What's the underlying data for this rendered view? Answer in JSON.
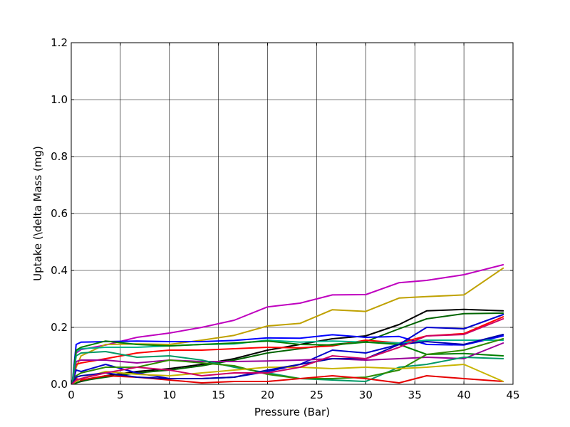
{
  "chart_data": {
    "type": "line",
    "title": "",
    "xlabel": "Pressure (Bar)",
    "ylabel": "Uptake (\\delta Mass (mg)",
    "xlim": [
      0,
      45
    ],
    "ylim": [
      0,
      1.2
    ],
    "xticks": [
      0,
      5,
      10,
      15,
      20,
      25,
      30,
      35,
      40,
      45
    ],
    "yticks": [
      0.0,
      0.2,
      0.4,
      0.6,
      0.8,
      1.0,
      1.2
    ],
    "xtick_labels": [
      "0",
      "5",
      "10",
      "15",
      "20",
      "25",
      "30",
      "35",
      "40",
      "45"
    ],
    "ytick_labels": [
      "0.0",
      "0.2",
      "0.4",
      "0.6",
      "0.8",
      "1.0",
      "1.2"
    ],
    "grid": true,
    "legend": "none",
    "series": [
      {
        "color": "#bf00bf",
        "x": [
          0.1,
          0.5,
          1,
          3.5,
          6.7,
          10,
          13.3,
          16.6,
          20,
          23.3,
          26.6,
          30,
          33.4,
          36.2,
          40,
          44
        ],
        "y": [
          0.005,
          0.11,
          0.122,
          0.138,
          0.165,
          0.18,
          0.2,
          0.225,
          0.272,
          0.285,
          0.314,
          0.315,
          0.357,
          0.365,
          0.385,
          0.42
        ]
      },
      {
        "color": "#bfa100",
        "x": [
          0.1,
          0.5,
          1,
          3.5,
          6.7,
          10,
          13.3,
          16.6,
          20,
          23.3,
          26.6,
          30,
          33.4,
          36.2,
          40,
          44
        ],
        "y": [
          0.005,
          0.06,
          0.1,
          0.14,
          0.142,
          0.14,
          0.155,
          0.172,
          0.205,
          0.214,
          0.262,
          0.256,
          0.303,
          0.308,
          0.314,
          0.408
        ]
      },
      {
        "color": "#000000",
        "x": [
          0.1,
          0.5,
          1,
          3.5,
          6.7,
          10,
          13.3,
          16.6,
          20,
          23.3,
          26.6,
          30,
          33.4,
          36.2,
          40,
          44
        ],
        "y": [
          0.002,
          0.005,
          0.01,
          0.03,
          0.045,
          0.055,
          0.07,
          0.09,
          0.12,
          0.14,
          0.16,
          0.17,
          0.21,
          0.258,
          0.263,
          0.258
        ]
      },
      {
        "color": "#006400",
        "x": [
          0.1,
          0.5,
          1,
          3.5,
          6.7,
          10,
          13.3,
          16.6,
          20,
          23.3,
          26.6,
          30,
          33.4,
          36.2,
          40,
          44
        ],
        "y": [
          0.002,
          0.004,
          0.012,
          0.025,
          0.04,
          0.05,
          0.065,
          0.085,
          0.11,
          0.125,
          0.14,
          0.15,
          0.195,
          0.23,
          0.248,
          0.25
        ]
      },
      {
        "color": "#0000ff",
        "x": [
          0.1,
          0.5,
          1,
          3.5,
          6.7,
          10,
          13.3,
          16.6,
          20,
          23.3,
          26.6,
          30,
          33.4,
          36.2,
          40,
          44
        ],
        "y": [
          0.005,
          0.14,
          0.148,
          0.15,
          0.152,
          0.15,
          0.15,
          0.154,
          0.163,
          0.162,
          0.174,
          0.165,
          0.168,
          0.14,
          0.138,
          0.17
        ]
      },
      {
        "color": "#ff0000",
        "x": [
          0.1,
          0.5,
          1,
          3.5,
          6.7,
          10,
          13.3,
          16.6,
          20,
          23.3,
          26.6,
          30,
          33.4,
          36.2,
          40,
          44
        ],
        "y": [
          0.003,
          0.07,
          0.075,
          0.09,
          0.11,
          0.12,
          0.12,
          0.125,
          0.13,
          0.128,
          0.135,
          0.155,
          0.145,
          0.17,
          0.178,
          0.237
        ]
      },
      {
        "color": "#00b38c",
        "x": [
          0.1,
          0.5,
          1,
          3.5,
          6.7,
          10,
          13.3,
          16.6,
          20,
          23.3,
          26.6,
          30,
          33.4,
          36.2,
          40,
          44
        ],
        "y": [
          0.004,
          0.115,
          0.125,
          0.13,
          0.13,
          0.135,
          0.14,
          0.142,
          0.155,
          0.148,
          0.152,
          0.148,
          0.145,
          0.155,
          0.155,
          0.155
        ]
      },
      {
        "color": "#008000",
        "x": [
          0.1,
          0.5,
          1,
          3.5,
          6.7,
          10,
          13.3,
          16.6,
          20,
          23.3,
          26.6,
          30,
          33.4,
          36.2,
          40,
          44
        ],
        "y": [
          0.003,
          0.12,
          0.13,
          0.152,
          0.14,
          0.135,
          0.14,
          0.145,
          0.152,
          0.14,
          0.138,
          0.148,
          0.14,
          0.105,
          0.108,
          0.1
        ]
      },
      {
        "color": "#0000cc",
        "x": [
          0.1,
          0.5,
          1,
          3.5,
          6.7,
          10,
          13.3,
          16.6,
          20,
          23.3,
          26.6,
          30,
          33.4,
          36.2,
          40,
          44
        ],
        "y": [
          0.002,
          0.05,
          0.045,
          0.07,
          0.04,
          0.02,
          0.02,
          0.025,
          0.045,
          0.07,
          0.12,
          0.11,
          0.14,
          0.2,
          0.195,
          0.245
        ]
      },
      {
        "color": "#990099",
        "x": [
          0.1,
          0.5,
          1,
          3.5,
          6.7,
          10,
          13.3,
          16.6,
          20,
          23.3,
          26.6,
          30,
          33.4,
          36.2,
          40,
          44
        ],
        "y": [
          0.002,
          0.08,
          0.085,
          0.085,
          0.075,
          0.085,
          0.08,
          0.08,
          0.082,
          0.085,
          0.09,
          0.085,
          0.09,
          0.095,
          0.09,
          0.145
        ]
      },
      {
        "color": "#009966",
        "x": [
          0.1,
          0.5,
          1,
          3.5,
          6.7,
          10,
          13.3,
          16.6,
          20,
          23.3,
          26.6,
          30,
          33.4,
          36.2,
          40,
          44
        ],
        "y": [
          0.002,
          0.1,
          0.11,
          0.115,
          0.095,
          0.1,
          0.085,
          0.06,
          0.04,
          0.02,
          0.015,
          0.01,
          0.06,
          0.07,
          0.095,
          0.09
        ]
      },
      {
        "color": "#2e8b00",
        "x": [
          0.1,
          0.5,
          1,
          3.5,
          6.7,
          10,
          13.3,
          16.6,
          20,
          23.3,
          26.6,
          30,
          33.4,
          36.2,
          40,
          44
        ],
        "y": [
          0.002,
          0.03,
          0.04,
          0.06,
          0.06,
          0.085,
          0.075,
          0.065,
          0.035,
          0.02,
          0.02,
          0.025,
          0.05,
          0.105,
          0.12,
          0.16
        ]
      },
      {
        "color": "#e60000",
        "x": [
          0.1,
          0.5,
          1,
          3.5,
          6.7,
          10,
          13.3,
          16.6,
          20,
          23.3,
          26.6,
          30,
          33.4,
          36.2,
          40,
          44
        ],
        "y": [
          0.002,
          0.02,
          0.015,
          0.03,
          0.025,
          0.015,
          0.005,
          0.01,
          0.01,
          0.02,
          0.03,
          0.02,
          0.005,
          0.03,
          0.02,
          0.01
        ]
      },
      {
        "color": "#c8b400",
        "x": [
          0.1,
          0.5,
          1,
          3.5,
          6.7,
          10,
          13.3,
          16.6,
          20,
          23.3,
          26.6,
          30,
          33.4,
          36.2,
          40,
          44
        ],
        "y": [
          0.002,
          0.01,
          0.02,
          0.045,
          0.035,
          0.03,
          0.04,
          0.05,
          0.06,
          0.06,
          0.055,
          0.06,
          0.055,
          0.06,
          0.07,
          0.01
        ]
      },
      {
        "color": "#0000aa",
        "x": [
          0.1,
          0.5,
          1,
          3.5,
          6.7,
          10,
          13.3,
          16.6,
          20,
          23.3,
          26.6,
          30,
          33.4,
          36.2,
          40,
          44
        ],
        "y": [
          0.002,
          0.025,
          0.03,
          0.04,
          0.025,
          0.02,
          0.02,
          0.025,
          0.05,
          0.07,
          0.09,
          0.09,
          0.14,
          0.15,
          0.14,
          0.175
        ]
      },
      {
        "color": "#cc0066",
        "x": [
          0.1,
          0.5,
          1,
          3.5,
          6.7,
          10,
          13.3,
          16.6,
          20,
          23.3,
          26.6,
          30,
          33.4,
          36.2,
          40,
          44
        ],
        "y": [
          0.002,
          0.015,
          0.02,
          0.04,
          0.06,
          0.05,
          0.03,
          0.04,
          0.04,
          0.06,
          0.1,
          0.09,
          0.13,
          0.17,
          0.175,
          0.23
        ]
      }
    ]
  }
}
